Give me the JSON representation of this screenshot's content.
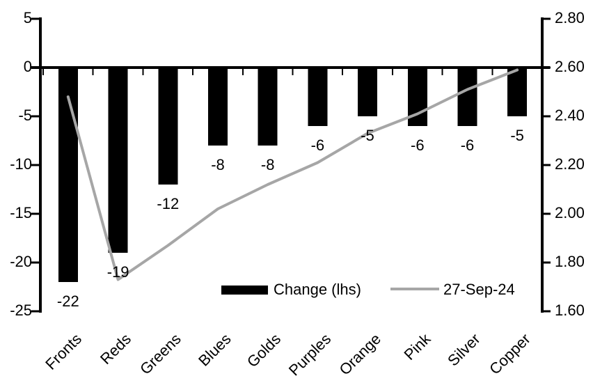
{
  "chart_data": {
    "type": "combo",
    "title": "",
    "categories": [
      "Fronts",
      "Reds",
      "Greens",
      "Blues",
      "Golds",
      "Purples",
      "Orange",
      "Pink",
      "Silver",
      "Copper"
    ],
    "series": [
      {
        "name": "Change (lhs)",
        "type": "bar",
        "axis": "left",
        "color": "#000000",
        "values": [
          -22,
          -19,
          -12,
          -8,
          -8,
          -6,
          -5,
          -6,
          -6,
          -5
        ],
        "labels": [
          "-22",
          "-19",
          "-12",
          "-8",
          "-8",
          "-6",
          "-5",
          "-6",
          "-6",
          "-5"
        ]
      },
      {
        "name": "27-Sep-24",
        "type": "line",
        "axis": "right",
        "color": "#a6a6a6",
        "values": [
          2.48,
          1.73,
          1.87,
          2.02,
          2.12,
          2.21,
          2.33,
          2.41,
          2.51,
          2.59
        ]
      }
    ],
    "left_axis": {
      "ticks": [
        "5",
        "0",
        "-5",
        "-10",
        "-15",
        "-20",
        "-25"
      ],
      "min": -25,
      "max": 5
    },
    "right_axis": {
      "ticks": [
        "2.80",
        "2.60",
        "2.40",
        "2.20",
        "2.00",
        "1.80",
        "1.60"
      ],
      "min": 1.6,
      "max": 2.8
    },
    "legend": {
      "position": "bottom-inside"
    },
    "grid": false,
    "background": "#ffffff",
    "axis_color": "#000000"
  }
}
